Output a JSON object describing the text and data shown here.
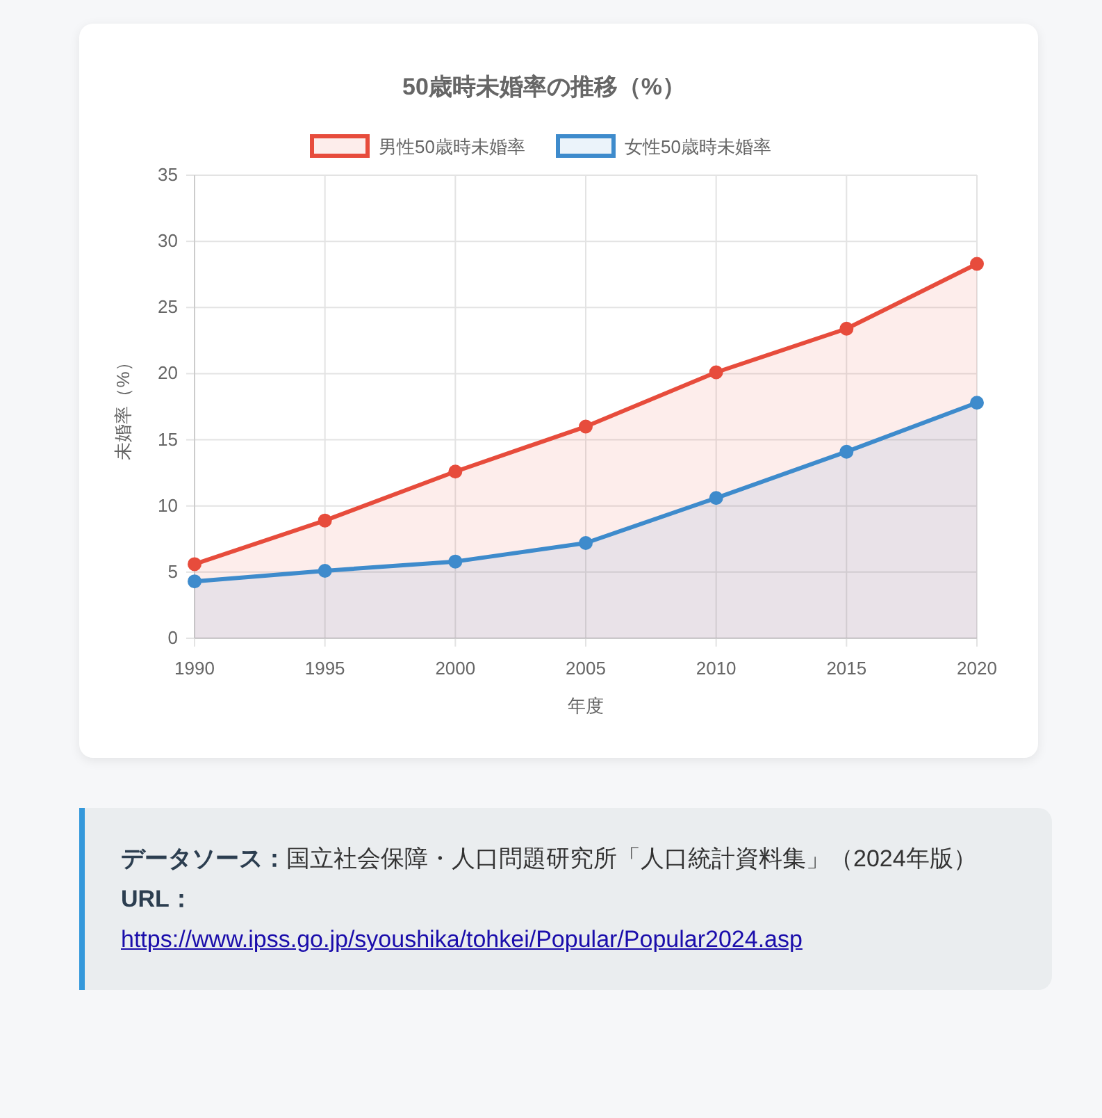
{
  "chart_data": {
    "type": "area",
    "title": "50歳時未婚率の推移（%）",
    "xlabel": "年度",
    "ylabel": "未婚率（%）",
    "x": [
      1990,
      1995,
      2000,
      2005,
      2010,
      2015,
      2020
    ],
    "series": [
      {
        "name": "男性50歳時未婚率",
        "color": "#e74c3c",
        "values": [
          5.6,
          8.9,
          12.6,
          16.0,
          20.1,
          23.4,
          28.3
        ]
      },
      {
        "name": "女性50歳時未婚率",
        "color": "#3e8bcc",
        "values": [
          4.3,
          5.1,
          5.8,
          7.2,
          10.6,
          14.1,
          17.8
        ]
      }
    ],
    "xlim": [
      1990,
      2020
    ],
    "xticks": [
      1990,
      1995,
      2000,
      2005,
      2010,
      2015,
      2020
    ],
    "ylim": [
      0,
      35
    ],
    "yticks": [
      0,
      5,
      10,
      15,
      20,
      25,
      30,
      35
    ],
    "grid": true,
    "legend": "top",
    "marker": "circle",
    "annotations": [
      "データソース：国立社会保障・人口問題研究所「人口統計資料集」（2024年版）",
      "URL：https://www.ipss.go.jp/syoushika/tohkei/Popular/Popular2024.asp"
    ]
  }
}
